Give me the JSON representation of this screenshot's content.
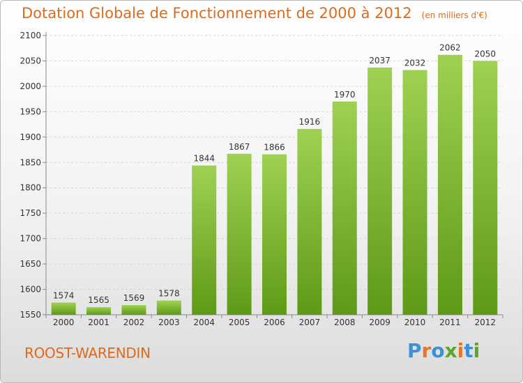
{
  "header": {
    "title": "Dotation Globale de Fonctionnement de 2000 à 2012",
    "subtitle": "(en milliers d'€)"
  },
  "footer": {
    "city": "ROOST-WARENDIN",
    "logo_letters": [
      "P",
      "r",
      "o",
      "x",
      "i",
      "t",
      "i"
    ],
    "logo_colors": [
      "#3d8fd6",
      "#e8762a",
      "#3d8fd6",
      "#5aa82a",
      "#e8762a",
      "#3d8fd6",
      "#5aa82a"
    ]
  },
  "colors": {
    "bar_top": "#9fd152",
    "bar_bottom": "#5e9a17",
    "accent": "#e06a1a"
  },
  "chart_data": {
    "type": "bar",
    "categories": [
      "2000",
      "2001",
      "2002",
      "2003",
      "2004",
      "2005",
      "2006",
      "2007",
      "2008",
      "2009",
      "2010",
      "2011",
      "2012"
    ],
    "values": [
      1574,
      1565,
      1569,
      1578,
      1844,
      1867,
      1866,
      1916,
      1970,
      2037,
      2032,
      2062,
      2050
    ],
    "ylim": [
      1550,
      2100
    ],
    "yticks": [
      1550,
      1600,
      1650,
      1700,
      1750,
      1800,
      1850,
      1900,
      1950,
      2000,
      2050,
      2100
    ],
    "grid": true,
    "data_labels": true
  }
}
